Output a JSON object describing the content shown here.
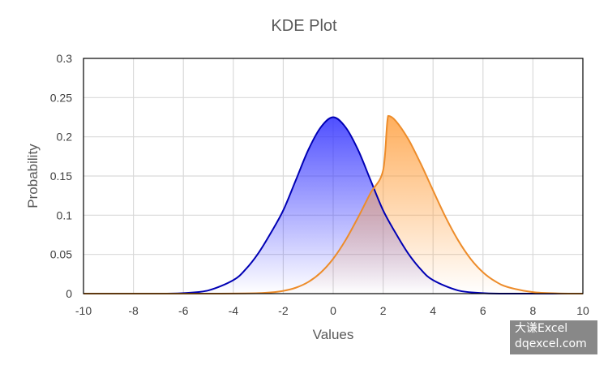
{
  "chart_data": {
    "type": "area",
    "title": "KDE Plot",
    "xlabel": "Values",
    "ylabel": "Probability",
    "xlim": [
      -10,
      10
    ],
    "ylim": [
      0,
      0.3
    ],
    "x_ticks": [
      "-10",
      "-8",
      "-6",
      "-4",
      "-2",
      "0",
      "2",
      "4",
      "6",
      "8",
      "10"
    ],
    "y_ticks": [
      "0",
      "0.05",
      "0.1",
      "0.15",
      "0.2",
      "0.25",
      "0.3"
    ],
    "grid": true,
    "legend": "none",
    "series": [
      {
        "color": "#0000b4",
        "fill_color": "#3c3cff",
        "x": [
          -10,
          -9,
          -8,
          -7,
          -6,
          -5,
          -4,
          -3.5,
          -3,
          -2.5,
          -2,
          -1.5,
          -1,
          -0.5,
          0,
          0.5,
          1,
          1.5,
          2,
          2.5,
          3,
          3.5,
          4,
          5,
          6,
          7,
          8,
          9,
          10
        ],
        "values": [
          0,
          0,
          0,
          0,
          0.0007,
          0.0041,
          0.0172,
          0.0312,
          0.0514,
          0.0773,
          0.1062,
          0.1444,
          0.183,
          0.212,
          0.225,
          0.212,
          0.183,
          0.1444,
          0.1062,
          0.0773,
          0.0514,
          0.0312,
          0.0172,
          0.0041,
          0.0007,
          0,
          0,
          0,
          0
        ]
      },
      {
        "color": "#ed8c2a",
        "fill_color": "#ffa040",
        "x": [
          -10,
          -9,
          -8,
          -7,
          -6,
          -5,
          -4,
          -3,
          -2.5,
          -2,
          -1.5,
          -1,
          -0.5,
          0,
          0.5,
          1,
          1.5,
          2,
          2.2,
          2.5,
          3,
          3.5,
          4,
          4.5,
          5,
          5.5,
          6,
          6.5,
          7,
          8,
          9,
          10
        ],
        "values": [
          0,
          0,
          0,
          0,
          0,
          0,
          0.0001,
          0.0006,
          0.0015,
          0.0035,
          0.0075,
          0.0148,
          0.0268,
          0.0445,
          0.0684,
          0.0974,
          0.1285,
          0.1573,
          0.2267,
          0.2205,
          0.1974,
          0.1662,
          0.1316,
          0.0977,
          0.0682,
          0.0445,
          0.0272,
          0.0155,
          0.0083,
          0.0019,
          0.0003,
          0
        ]
      }
    ]
  },
  "watermark": {
    "line1": "大谦Excel",
    "line2": "dqexcel.com"
  }
}
